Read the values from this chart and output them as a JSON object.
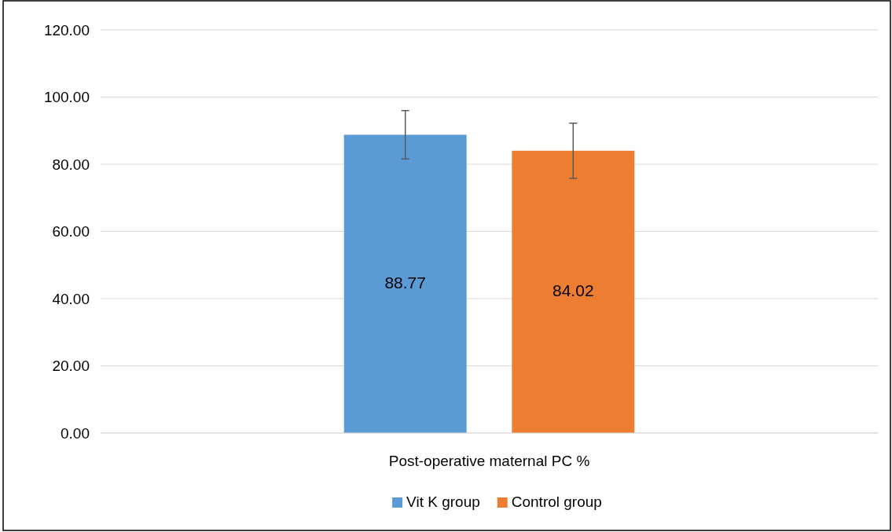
{
  "chart_data": {
    "type": "bar",
    "categories": [
      "Post-operative maternal PC %"
    ],
    "series": [
      {
        "name": "Vit K group",
        "color": "#5b9bd5",
        "values": [
          88.77
        ],
        "errors": [
          7.2
        ]
      },
      {
        "name": "Control group",
        "color": "#ed7d31",
        "values": [
          84.02
        ],
        "errors": [
          8.2
        ]
      }
    ],
    "ylim": [
      0,
      120
    ],
    "yticks": [
      {
        "value": 0,
        "label": "0.00"
      },
      {
        "value": 20,
        "label": "20.00"
      },
      {
        "value": 40,
        "label": "40.00"
      },
      {
        "value": 60,
        "label": "60.00"
      },
      {
        "value": 80,
        "label": "80.00"
      },
      {
        "value": 100,
        "label": "100.00"
      },
      {
        "value": 120,
        "label": "120.00"
      }
    ],
    "grid": "y",
    "legend": "bottom",
    "data_labels": true
  }
}
